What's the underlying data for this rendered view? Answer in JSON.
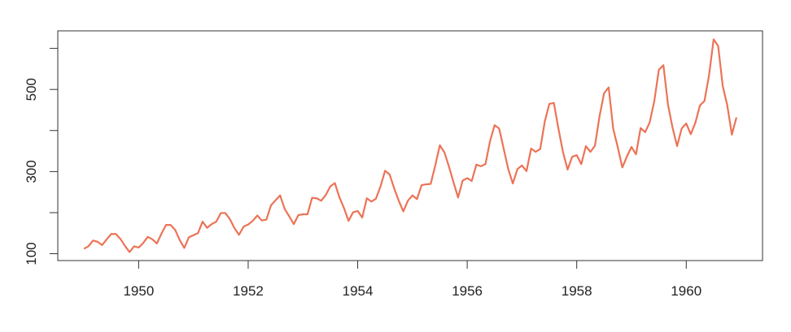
{
  "chart_data": {
    "type": "line",
    "x": [
      1949,
      1949.083,
      1949.167,
      1949.25,
      1949.333,
      1949.417,
      1949.5,
      1949.583,
      1949.667,
      1949.75,
      1949.833,
      1949.917,
      1950,
      1950.083,
      1950.167,
      1950.25,
      1950.333,
      1950.417,
      1950.5,
      1950.583,
      1950.667,
      1950.75,
      1950.833,
      1950.917,
      1951,
      1951.083,
      1951.167,
      1951.25,
      1951.333,
      1951.417,
      1951.5,
      1951.583,
      1951.667,
      1951.75,
      1951.833,
      1951.917,
      1952,
      1952.083,
      1952.167,
      1952.25,
      1952.333,
      1952.417,
      1952.5,
      1952.583,
      1952.667,
      1952.75,
      1952.833,
      1952.917,
      1953,
      1953.083,
      1953.167,
      1953.25,
      1953.333,
      1953.417,
      1953.5,
      1953.583,
      1953.667,
      1953.75,
      1953.833,
      1953.917,
      1954,
      1954.083,
      1954.167,
      1954.25,
      1954.333,
      1954.417,
      1954.5,
      1954.583,
      1954.667,
      1954.75,
      1954.833,
      1954.917,
      1955,
      1955.083,
      1955.167,
      1955.25,
      1955.333,
      1955.417,
      1955.5,
      1955.583,
      1955.667,
      1955.75,
      1955.833,
      1955.917,
      1956,
      1956.083,
      1956.167,
      1956.25,
      1956.333,
      1956.417,
      1956.5,
      1956.583,
      1956.667,
      1956.75,
      1956.833,
      1956.917,
      1957,
      1957.083,
      1957.167,
      1957.25,
      1957.333,
      1957.417,
      1957.5,
      1957.583,
      1957.667,
      1957.75,
      1957.833,
      1957.917,
      1958,
      1958.083,
      1958.167,
      1958.25,
      1958.333,
      1958.417,
      1958.5,
      1958.583,
      1958.667,
      1958.75,
      1958.833,
      1958.917,
      1959,
      1959.083,
      1959.167,
      1959.25,
      1959.333,
      1959.417,
      1959.5,
      1959.583,
      1959.667,
      1959.75,
      1959.833,
      1959.917,
      1960,
      1960.083,
      1960.167,
      1960.25,
      1960.333,
      1960.417,
      1960.5,
      1960.583,
      1960.667,
      1960.75,
      1960.833,
      1960.917
    ],
    "values": [
      112,
      118,
      132,
      129,
      121,
      135,
      148,
      148,
      136,
      119,
      104,
      118,
      115,
      126,
      141,
      135,
      125,
      149,
      170,
      170,
      158,
      133,
      114,
      140,
      145,
      150,
      178,
      163,
      172,
      178,
      199,
      199,
      184,
      162,
      146,
      166,
      171,
      180,
      193,
      181,
      183,
      218,
      230,
      242,
      209,
      191,
      172,
      194,
      196,
      196,
      236,
      235,
      229,
      243,
      264,
      272,
      237,
      211,
      180,
      201,
      204,
      188,
      235,
      227,
      234,
      264,
      302,
      293,
      259,
      229,
      203,
      229,
      242,
      233,
      267,
      269,
      270,
      315,
      364,
      347,
      312,
      274,
      237,
      278,
      284,
      277,
      317,
      313,
      318,
      374,
      413,
      405,
      355,
      306,
      271,
      306,
      315,
      301,
      356,
      348,
      355,
      422,
      465,
      467,
      404,
      347,
      305,
      336,
      340,
      318,
      362,
      348,
      363,
      435,
      491,
      505,
      404,
      359,
      310,
      337,
      360,
      342,
      406,
      396,
      420,
      472,
      548,
      559,
      463,
      407,
      362,
      405,
      417,
      391,
      419,
      461,
      472,
      535,
      622,
      606,
      508,
      461,
      390,
      432
    ],
    "color": "#ec7357",
    "xlim": [
      1948.523,
      1961.393
    ],
    "xticks": [
      1950,
      1952,
      1954,
      1956,
      1958,
      1960
    ],
    "ylim": [
      83.28,
      642.72
    ],
    "yticks": [
      100,
      {
        "value": 200,
        "label": null
      },
      300,
      {
        "value": 400,
        "label": null
      },
      500,
      {
        "value": 600,
        "label": null
      }
    ]
  }
}
